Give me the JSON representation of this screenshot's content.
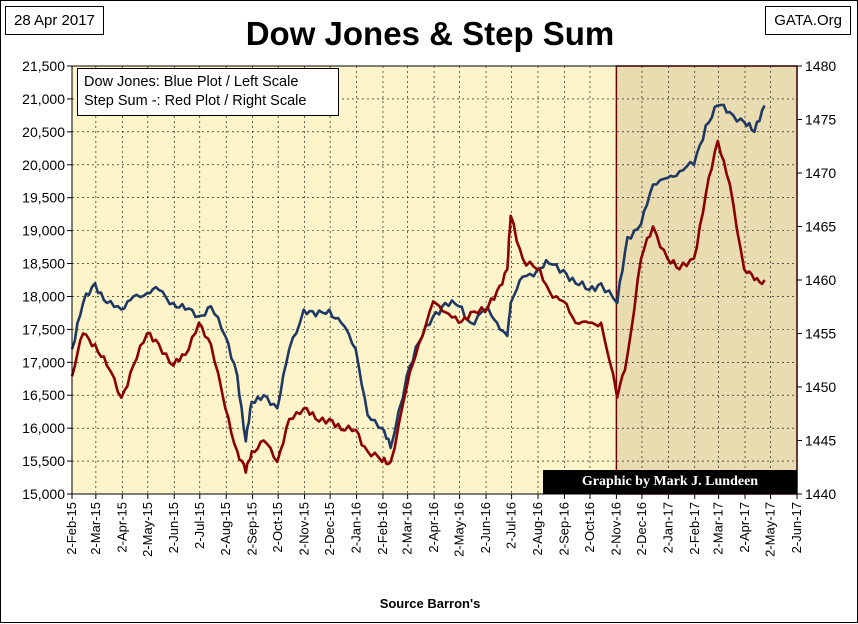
{
  "header": {
    "date": "28 Apr 2017",
    "site": "GATA.Org",
    "title": "Dow Jones & Step Sum"
  },
  "legend": {
    "line1": "Dow Jones: Blue Plot / Left Scale",
    "line2": "Step Sum -: Red Plot / Right Scale"
  },
  "credit": "Graphic by Mark J. Lundeen",
  "source": "Source Barron's",
  "chart_data": {
    "type": "line",
    "title": "Dow Jones & Step Sum",
    "xlabel": "Source Barron's",
    "x_tick_labels": [
      "2-Feb-15",
      "2-Mar-15",
      "2-Apr-15",
      "2-May-15",
      "2-Jun-15",
      "2-Jul-15",
      "2-Aug-15",
      "2-Sep-15",
      "2-Oct-15",
      "2-Nov-15",
      "2-Dec-15",
      "2-Jan-16",
      "2-Feb-16",
      "2-Mar-16",
      "2-Apr-16",
      "2-May-16",
      "2-Jun-16",
      "2-Jul-16",
      "2-Aug-16",
      "2-Sep-16",
      "2-Oct-16",
      "2-Nov-16",
      "2-Dec-16",
      "2-Jan-17",
      "2-Feb-17",
      "2-Mar-17",
      "2-Apr-17",
      "2-May-17",
      "2-Jun-17"
    ],
    "y_left": {
      "label": "Dow Jones",
      "min": 15000,
      "max": 21500,
      "ticks": [
        "15,000",
        "15,500",
        "16,000",
        "16,500",
        "17,000",
        "17,500",
        "18,000",
        "18,500",
        "19,000",
        "19,500",
        "20,000",
        "20,500",
        "21,000",
        "21,500"
      ]
    },
    "y_right": {
      "label": "Step Sum",
      "min": 1440,
      "max": 1480,
      "ticks": [
        "1440",
        "1445",
        "1450",
        "1455",
        "1460",
        "1465",
        "1470",
        "1475",
        "1480"
      ]
    },
    "shaded_region": {
      "from": "2-Nov-16",
      "to": "2-Jun-17"
    },
    "colors": {
      "dow": "#1f3864",
      "step": "#8b0000",
      "plot_bg": "#fdf5c9",
      "shade_bg": "#e9dcb0",
      "shade_border": "#8b0000"
    },
    "series": [
      {
        "name": "Dow Jones",
        "axis": "left",
        "x": [
          "2015-02-02",
          "2015-02-15",
          "2015-03-01",
          "2015-03-15",
          "2015-04-01",
          "2015-04-15",
          "2015-05-01",
          "2015-05-15",
          "2015-06-01",
          "2015-06-15",
          "2015-07-01",
          "2015-07-15",
          "2015-08-01",
          "2015-08-15",
          "2015-08-25",
          "2015-09-01",
          "2015-09-15",
          "2015-10-01",
          "2015-10-15",
          "2015-11-01",
          "2015-11-15",
          "2015-12-01",
          "2015-12-15",
          "2016-01-01",
          "2016-01-15",
          "2016-02-01",
          "2016-02-11",
          "2016-03-01",
          "2016-03-15",
          "2016-04-01",
          "2016-04-15",
          "2016-05-01",
          "2016-05-15",
          "2016-06-01",
          "2016-06-15",
          "2016-06-27",
          "2016-07-01",
          "2016-07-15",
          "2016-08-01",
          "2016-08-15",
          "2016-09-01",
          "2016-09-15",
          "2016-10-01",
          "2016-10-15",
          "2016-11-03",
          "2016-11-15",
          "2016-12-01",
          "2016-12-15",
          "2017-01-01",
          "2017-01-15",
          "2017-02-01",
          "2017-02-15",
          "2017-03-01",
          "2017-03-15",
          "2017-04-01",
          "2017-04-13",
          "2017-04-25"
        ],
        "values": [
          17200,
          17900,
          18200,
          17900,
          17800,
          18000,
          18050,
          18100,
          17900,
          17800,
          17700,
          17850,
          17400,
          16800,
          15800,
          16400,
          16500,
          16300,
          17200,
          17800,
          17700,
          17800,
          17600,
          17200,
          16200,
          16000,
          15700,
          16800,
          17300,
          17700,
          17900,
          17850,
          17600,
          17800,
          17600,
          17400,
          17900,
          18300,
          18400,
          18500,
          18400,
          18200,
          18100,
          18200,
          17900,
          18900,
          19100,
          19700,
          19800,
          19900,
          20000,
          20600,
          20900,
          20800,
          20650,
          20500,
          20900
        ]
      },
      {
        "name": "Step Sum",
        "axis": "right",
        "x": [
          "2015-02-02",
          "2015-02-15",
          "2015-03-01",
          "2015-03-15",
          "2015-04-01",
          "2015-04-15",
          "2015-05-01",
          "2015-05-15",
          "2015-06-01",
          "2015-06-15",
          "2015-07-01",
          "2015-07-15",
          "2015-08-01",
          "2015-08-15",
          "2015-08-25",
          "2015-09-01",
          "2015-09-15",
          "2015-10-01",
          "2015-10-15",
          "2015-11-01",
          "2015-11-15",
          "2015-12-01",
          "2015-12-15",
          "2016-01-01",
          "2016-01-15",
          "2016-02-01",
          "2016-02-11",
          "2016-03-01",
          "2016-03-15",
          "2016-04-01",
          "2016-04-15",
          "2016-05-01",
          "2016-05-15",
          "2016-06-01",
          "2016-06-15",
          "2016-06-27",
          "2016-07-01",
          "2016-07-15",
          "2016-08-01",
          "2016-08-15",
          "2016-09-01",
          "2016-09-15",
          "2016-10-01",
          "2016-10-15",
          "2016-11-03",
          "2016-11-15",
          "2016-12-01",
          "2016-12-15",
          "2017-01-01",
          "2017-01-15",
          "2017-02-01",
          "2017-02-15",
          "2017-03-01",
          "2017-03-15",
          "2017-04-01",
          "2017-04-13",
          "2017-04-25"
        ],
        "values": [
          1451,
          1455,
          1454,
          1452,
          1449,
          1452,
          1455,
          1454,
          1452,
          1453,
          1456,
          1454,
          1448,
          1444,
          1442,
          1444,
          1445,
          1443,
          1447,
          1448,
          1447,
          1447,
          1446,
          1446,
          1444,
          1443,
          1443,
          1450,
          1454,
          1458,
          1457,
          1456,
          1457,
          1457,
          1459,
          1461,
          1466,
          1462,
          1461,
          1459,
          1458,
          1456,
          1456,
          1456,
          1449,
          1453,
          1462,
          1465,
          1462,
          1461,
          1462,
          1468,
          1473,
          1469,
          1461,
          1460,
          1460
        ]
      }
    ]
  }
}
